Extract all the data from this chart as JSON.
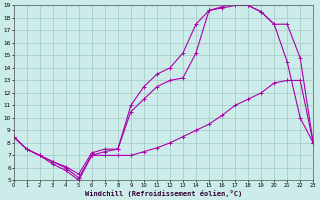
{
  "xlabel": "Windchill (Refroidissement éolien,°C)",
  "bg_color": "#ccecea",
  "grid_color": "#aaccca",
  "line_color": "#aa00aa",
  "xlim": [
    0,
    23
  ],
  "ylim": [
    5,
    19
  ],
  "xticks": [
    0,
    1,
    2,
    3,
    4,
    5,
    6,
    7,
    8,
    9,
    10,
    11,
    12,
    13,
    14,
    15,
    16,
    17,
    18,
    19,
    20,
    21,
    22,
    23
  ],
  "yticks": [
    5,
    6,
    7,
    8,
    9,
    10,
    11,
    12,
    13,
    14,
    15,
    16,
    17,
    18,
    19
  ],
  "line1_x": [
    0,
    1,
    2,
    3,
    4,
    5,
    6,
    7,
    8,
    9,
    10,
    11,
    12,
    13,
    14,
    15,
    16,
    17,
    18,
    19,
    20,
    21,
    22,
    23
  ],
  "line1_y": [
    8.5,
    7.5,
    7.0,
    6.5,
    6.0,
    5.2,
    7.0,
    7.0,
    7.0,
    7.0,
    7.3,
    7.6,
    8.0,
    8.5,
    9.0,
    9.5,
    10.2,
    11.0,
    11.5,
    12.0,
    12.8,
    13.0,
    13.0,
    8.0
  ],
  "line2_x": [
    0,
    1,
    2,
    3,
    4,
    5,
    6,
    7,
    8,
    9,
    10,
    11,
    12,
    13,
    14,
    15,
    16,
    17,
    18,
    19,
    20,
    21,
    22,
    23
  ],
  "line2_y": [
    8.5,
    7.5,
    7.0,
    6.3,
    5.8,
    5.0,
    7.0,
    7.3,
    7.5,
    11.0,
    12.5,
    13.5,
    14.0,
    15.2,
    17.5,
    18.6,
    18.9,
    19.2,
    19.0,
    18.5,
    17.5,
    14.5,
    10.0,
    8.0
  ],
  "line3_x": [
    0,
    1,
    2,
    3,
    4,
    5,
    6,
    7,
    8,
    9,
    10,
    11,
    12,
    13,
    14,
    15,
    16,
    17,
    18,
    19,
    20,
    21,
    22,
    23
  ],
  "line3_y": [
    8.5,
    7.5,
    7.0,
    6.5,
    6.1,
    5.5,
    7.2,
    7.5,
    7.5,
    10.5,
    11.5,
    12.5,
    13.0,
    13.2,
    15.2,
    18.6,
    18.8,
    19.0,
    19.0,
    18.5,
    17.5,
    17.5,
    14.8,
    8.0
  ]
}
